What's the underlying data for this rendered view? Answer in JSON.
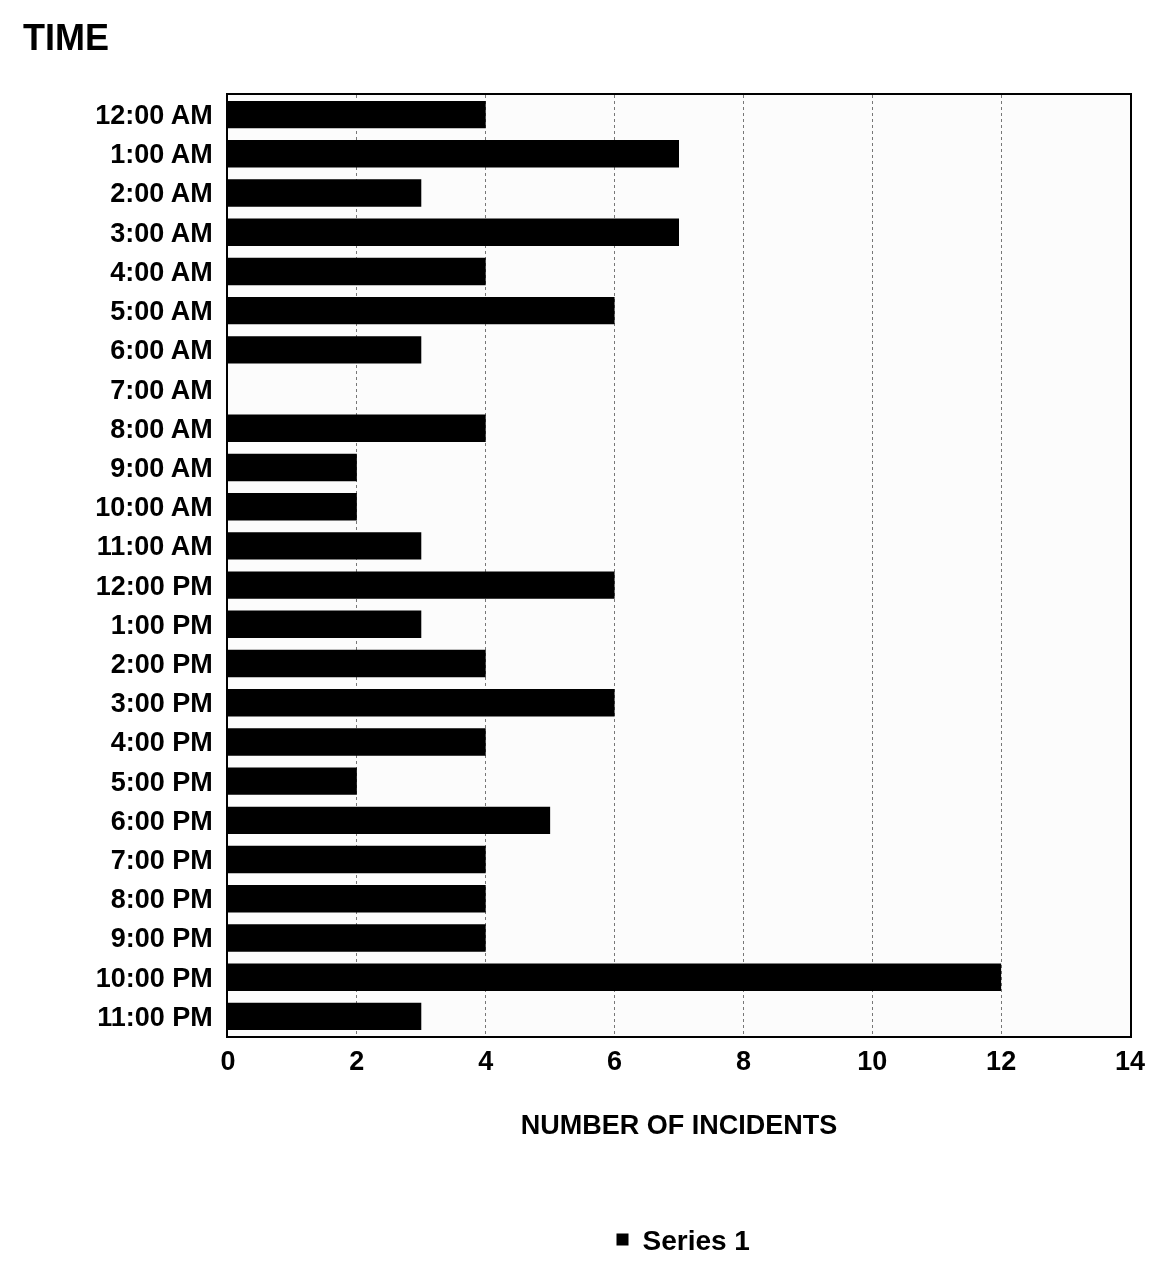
{
  "chart_data": {
    "type": "bar",
    "orientation": "horizontal",
    "ylabel": "TIME",
    "xlabel": "NUMBER OF INCIDENTS",
    "categories": [
      "12:00 AM",
      "1:00 AM",
      "2:00 AM",
      "3:00 AM",
      "4:00 AM",
      "5:00 AM",
      "6:00 AM",
      "7:00 AM",
      "8:00 AM",
      "9:00 AM",
      "10:00 AM",
      "11:00 AM",
      "12:00 PM",
      "1:00 PM",
      "2:00 PM",
      "3:00 PM",
      "4:00 PM",
      "5:00 PM",
      "6:00 PM",
      "7:00 PM",
      "8:00 PM",
      "9:00 PM",
      "10:00 PM",
      "11:00 PM"
    ],
    "series": [
      {
        "name": "Series 1",
        "color": "#000000",
        "values": [
          4,
          7,
          3,
          7,
          4,
          6,
          3,
          0,
          4,
          2,
          2,
          3,
          6,
          3,
          4,
          6,
          4,
          2,
          5,
          4,
          4,
          4,
          12,
          3
        ]
      }
    ],
    "xlim": [
      0,
      14
    ],
    "xticks": [
      0,
      2,
      4,
      6,
      8,
      10,
      12,
      14
    ],
    "grid": "x",
    "legend": "bottom"
  }
}
